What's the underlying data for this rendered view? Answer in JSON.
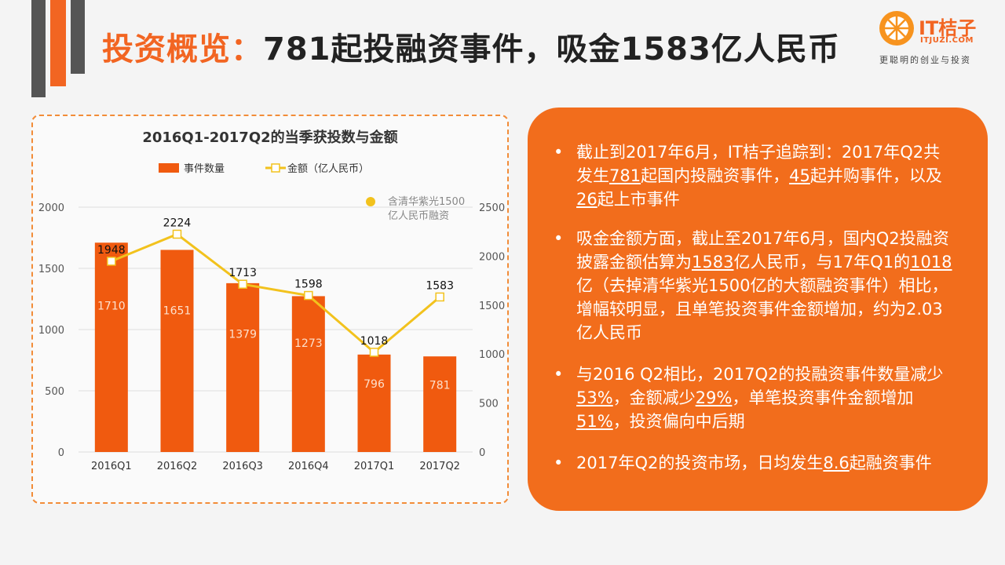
{
  "header": {
    "title_prefix": "投资概览：",
    "title_rest": "781起投融资事件，吸金1583亿人民币"
  },
  "logo": {
    "name": "IT桔子",
    "url": "ITJUZI.COM",
    "slogan": "更聪明的创业与投资"
  },
  "colors": {
    "accent": "#f26522",
    "bar": "#f05a0f",
    "line": "#f2c21d",
    "deco_gray": "#555555",
    "panel": "#f26d1c"
  },
  "chart_data": {
    "type": "bar",
    "title": "2016Q1-2017Q2的当季获投数与金额",
    "categories": [
      "2016Q1",
      "2016Q2",
      "2016Q3",
      "2016Q4",
      "2017Q1",
      "2017Q2"
    ],
    "series": [
      {
        "name": "事件数量",
        "type": "bar",
        "axis": "left",
        "values": [
          1710,
          1651,
          1379,
          1273,
          796,
          781
        ]
      },
      {
        "name": "金额（亿人民币）",
        "type": "line",
        "axis": "right",
        "values": [
          1948,
          2224,
          1713,
          1598,
          1018,
          1583
        ]
      }
    ],
    "ylim_left": [
      0,
      2000
    ],
    "yticks_left": [
      "0",
      "500",
      "1000",
      "1500",
      "2000"
    ],
    "ylim_right": [
      0,
      2500
    ],
    "yticks_right": [
      "0",
      "500",
      "1000",
      "1500",
      "2000",
      "2500"
    ],
    "legend_position": "top",
    "annotation": {
      "line1": "含清华紫光1500",
      "line2": "亿人民币融资"
    },
    "grid": true
  },
  "panel": {
    "bullet": "•",
    "items": [
      [
        {
          "t": "截止到2017年6月，IT桔子追踪到：2017年Q2共发生"
        },
        {
          "t": "781",
          "u": true
        },
        {
          "t": "起国内投融资事件，"
        },
        {
          "t": "45",
          "u": true
        },
        {
          "t": "起并购事件，以及"
        },
        {
          "t": "26",
          "u": true
        },
        {
          "t": "起上市事件"
        }
      ],
      [
        {
          "t": "吸金金额方面，截止至2017年6月，国内Q2投融资披露金额估算为"
        },
        {
          "t": "1583",
          "u": true
        },
        {
          "t": "亿人民币，与17年Q1的"
        },
        {
          "t": "1018",
          "u": true
        },
        {
          "t": "亿（去掉清华紫光1500亿的大额融资事件）相比，增幅较明显，且单笔投资事件金额增加，约为2.03亿人民币"
        }
      ],
      [
        {
          "t": "与2016 Q2相比，2017Q2的投融资事件数量减少"
        },
        {
          "t": "53%",
          "u": true
        },
        {
          "t": "，金额减少"
        },
        {
          "t": "29%",
          "u": true
        },
        {
          "t": "，单笔投资事件金额增加"
        },
        {
          "t": "51%",
          "u": true
        },
        {
          "t": "，投资偏向中后期"
        }
      ],
      [
        {
          "t": "2017年Q2的投资市场，日均发生"
        },
        {
          "t": "8.6",
          "u": true
        },
        {
          "t": "起融资事件"
        }
      ]
    ]
  }
}
